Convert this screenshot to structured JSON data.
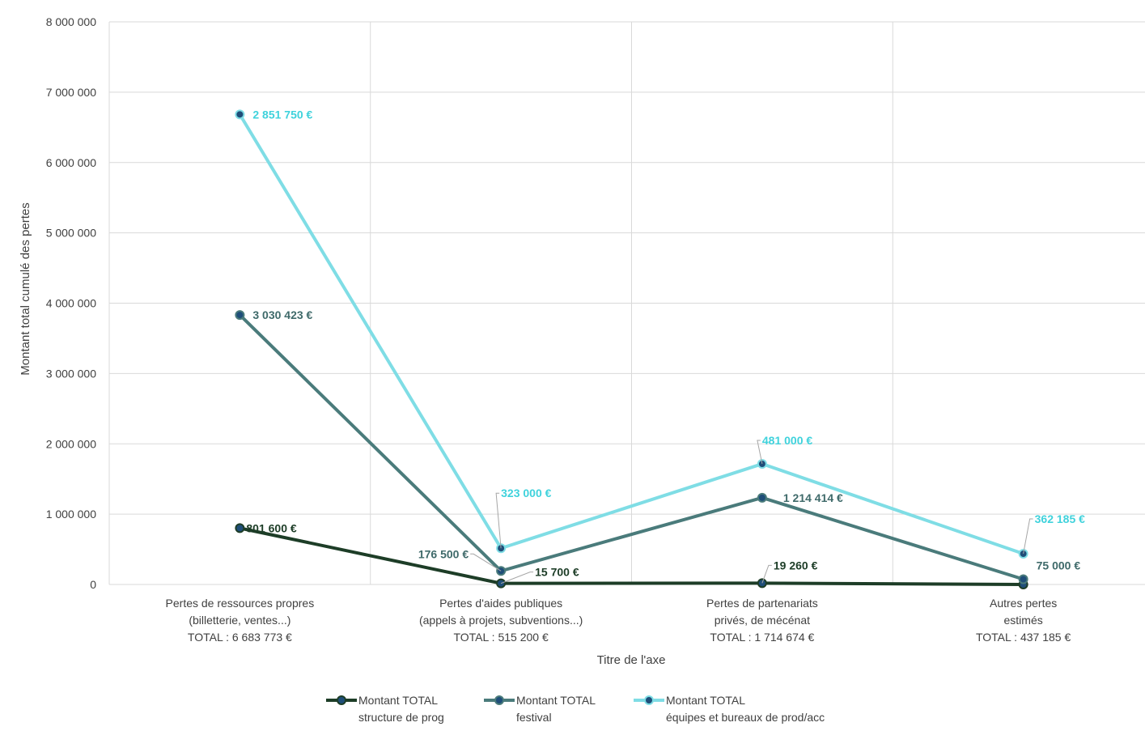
{
  "chart_data": {
    "type": "line",
    "title": "",
    "xlabel": "Titre de l'axe",
    "ylabel": "Montant total cumulé des pertes",
    "ylim": [
      0,
      8000000
    ],
    "yticks": [
      0,
      1000000,
      2000000,
      3000000,
      4000000,
      5000000,
      6000000,
      7000000,
      8000000
    ],
    "ytick_labels": [
      "0",
      "1 000 000",
      "2 000 000",
      "3 000 000",
      "4 000 000",
      "5 000 000",
      "6 000 000",
      "7 000 000",
      "8 000 000"
    ],
    "grid": true,
    "legend_position": "bottom",
    "categories": [
      [
        "Pertes de ressources propres",
        "(billetterie, ventes...)",
        "TOTAL : 6 683 773 €"
      ],
      [
        "Pertes d'aides publiques",
        "(appels à projets, subventions...)",
        "TOTAL : 515 200 €"
      ],
      [
        "Pertes de partenariats",
        "privés, de mécénat",
        "TOTAL : 1 714 674 €"
      ],
      [
        "Autres pertes",
        "estimés",
        "TOTAL  : 437 185 €"
      ]
    ],
    "series": [
      {
        "name": [
          "Montant TOTAL",
          "structure de prog"
        ],
        "color": "#1d3d27",
        "values": [
          801600,
          15700,
          19260,
          0
        ],
        "labels": [
          "801 600 €",
          "15 700 €",
          "19 260 €",
          ""
        ]
      },
      {
        "name": [
          "Montant TOTAL",
          "festival"
        ],
        "color": "#4a7b7b",
        "values": [
          3832023,
          192200,
          1233674,
          75000
        ],
        "labels": [
          "3 030 423 €",
          "176 500 €",
          "1 214 414 €",
          "75 000 €"
        ]
      },
      {
        "name": [
          "Montant TOTAL",
          "équipes et bureaux de prod/acc"
        ],
        "color": "#7fdde5",
        "values": [
          6683773,
          515200,
          1714674,
          437185
        ],
        "labels": [
          "2 851 750 €",
          "323 000 €",
          "481 000 €",
          "362 185 €"
        ]
      }
    ]
  }
}
